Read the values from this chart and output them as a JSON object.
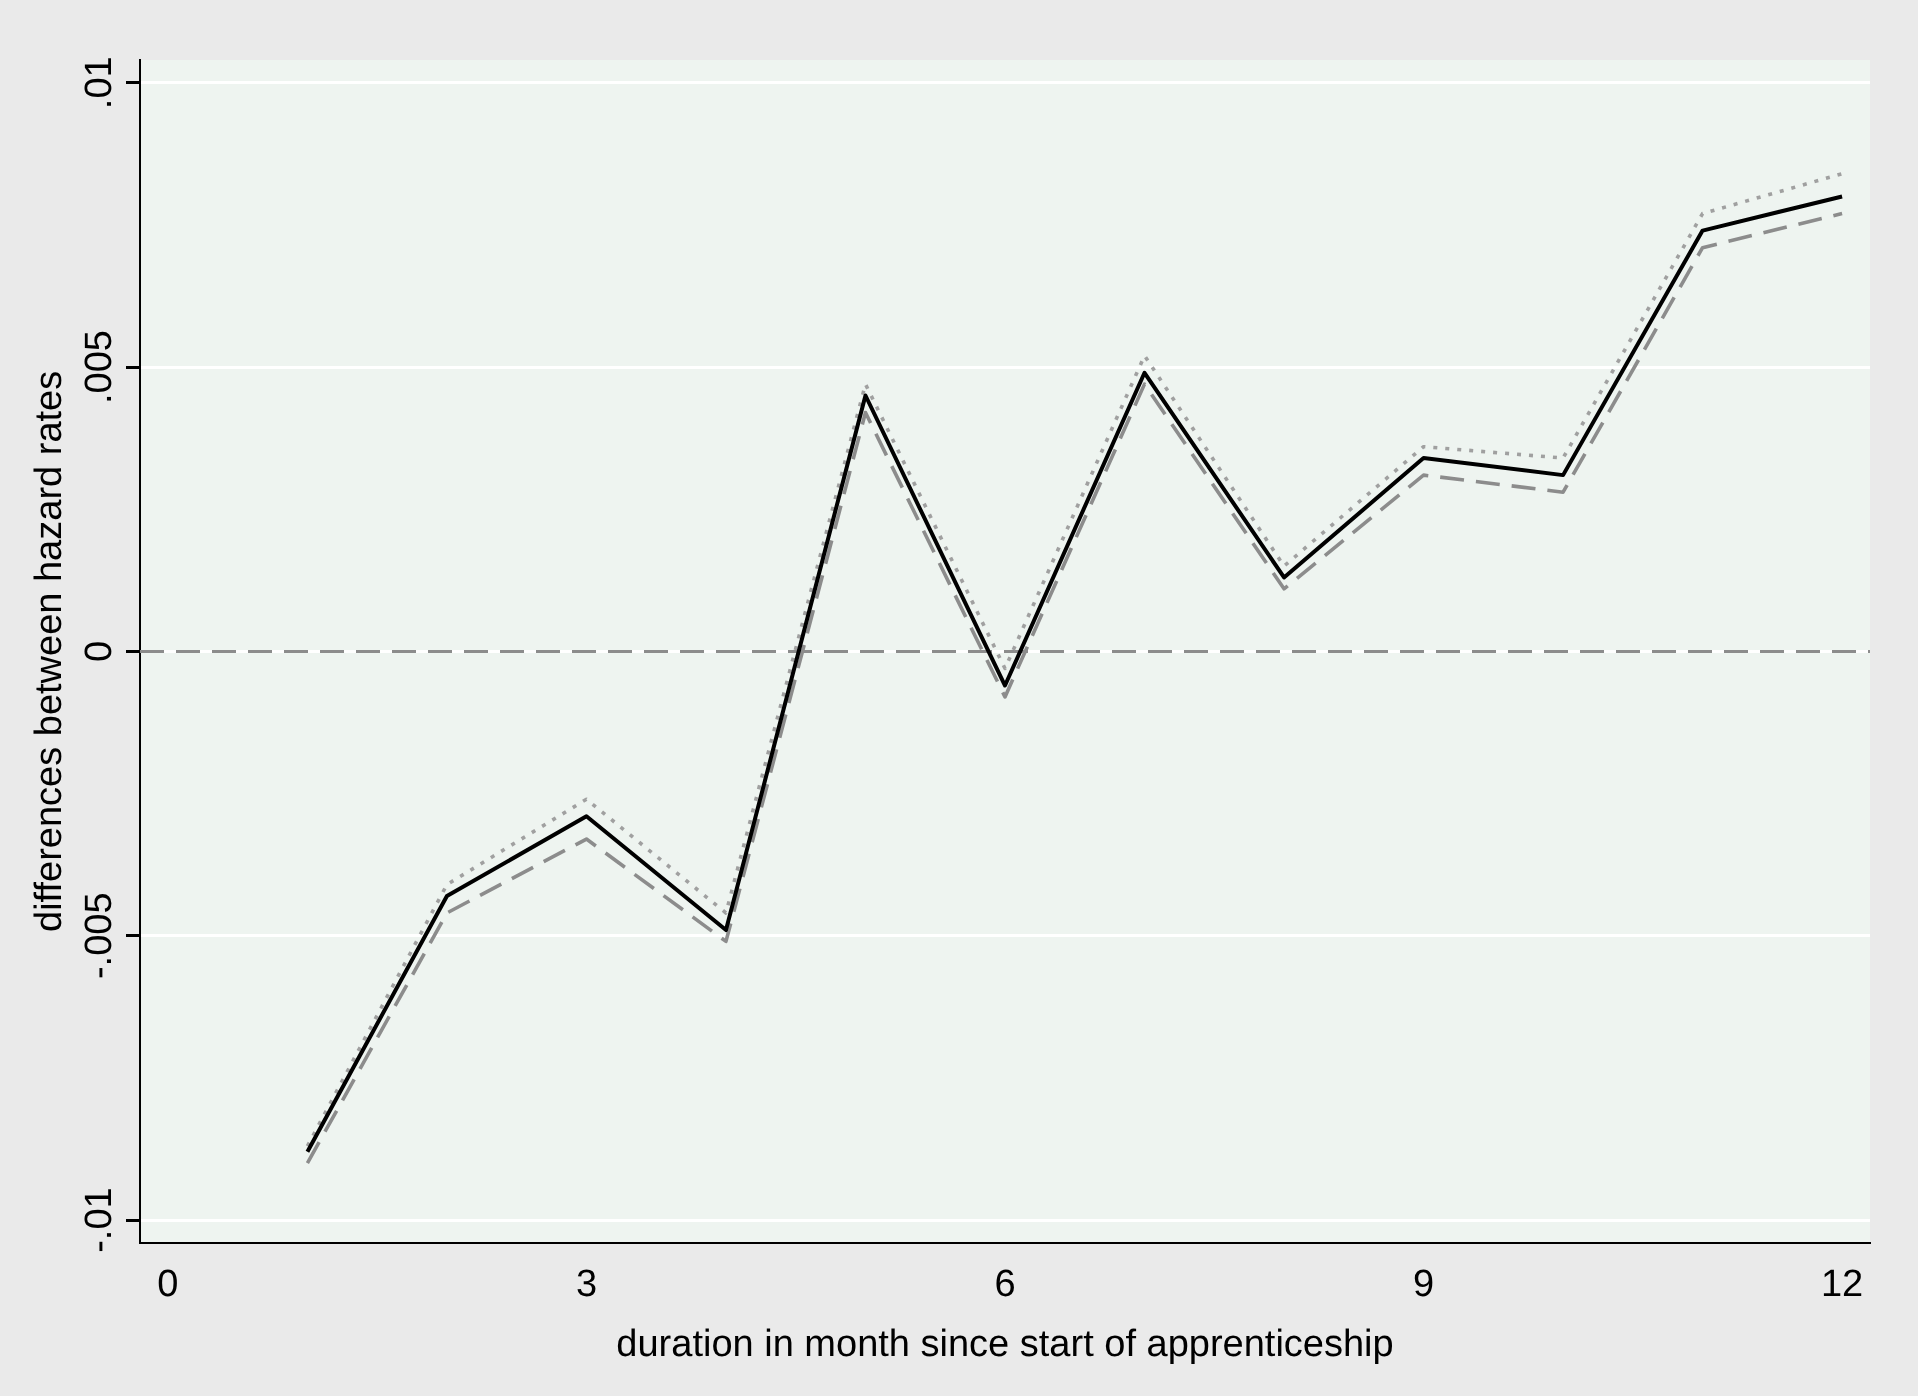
{
  "chart_data": {
    "type": "line",
    "xlabel": "duration in month since start of apprenticeship",
    "ylabel": "differences between hazard rates",
    "x": [
      1,
      2,
      3,
      4,
      5,
      6,
      7,
      8,
      9,
      10,
      11,
      12
    ],
    "series": [
      {
        "color": "#000000",
        "line_style": "solid",
        "values": [
          -0.0088,
          -0.0043,
          -0.0029,
          -0.0049,
          0.0045,
          -0.0006,
          0.0049,
          0.0013,
          0.0034,
          0.0031,
          0.0074,
          0.008
        ]
      },
      {
        "color": "#a0a0a0",
        "line_style": "dotted",
        "values": [
          -0.0087,
          -0.0041,
          -0.0026,
          -0.0046,
          0.0047,
          -0.0003,
          0.0052,
          0.0015,
          0.0036,
          0.0034,
          0.0077,
          0.0084
        ]
      },
      {
        "color": "#8c8c8c",
        "line_style": "dashed",
        "values": [
          -0.009,
          -0.0046,
          -0.0033,
          -0.0051,
          0.0042,
          -0.0008,
          0.0047,
          0.0011,
          0.0031,
          0.0028,
          0.0071,
          0.0077
        ]
      }
    ],
    "xlim": [
      -0.2,
      12.2
    ],
    "xticks": [
      0,
      3,
      6,
      9,
      12
    ],
    "ylim": [
      -0.0104,
      0.0104
    ],
    "yticks": [
      {
        "value": -0.01,
        "label": "-.01"
      },
      {
        "value": -0.005,
        "label": "-.005"
      },
      0,
      {
        "value": 0.005,
        "label": ".005"
      },
      {
        "value": 0.01,
        "label": ".01"
      }
    ],
    "ref_lines": [
      {
        "axis": "y",
        "value": 0,
        "color": "#8c8c8c",
        "line_style": "dashed"
      }
    ],
    "grid": "y",
    "legend": false,
    "marker": "none"
  }
}
